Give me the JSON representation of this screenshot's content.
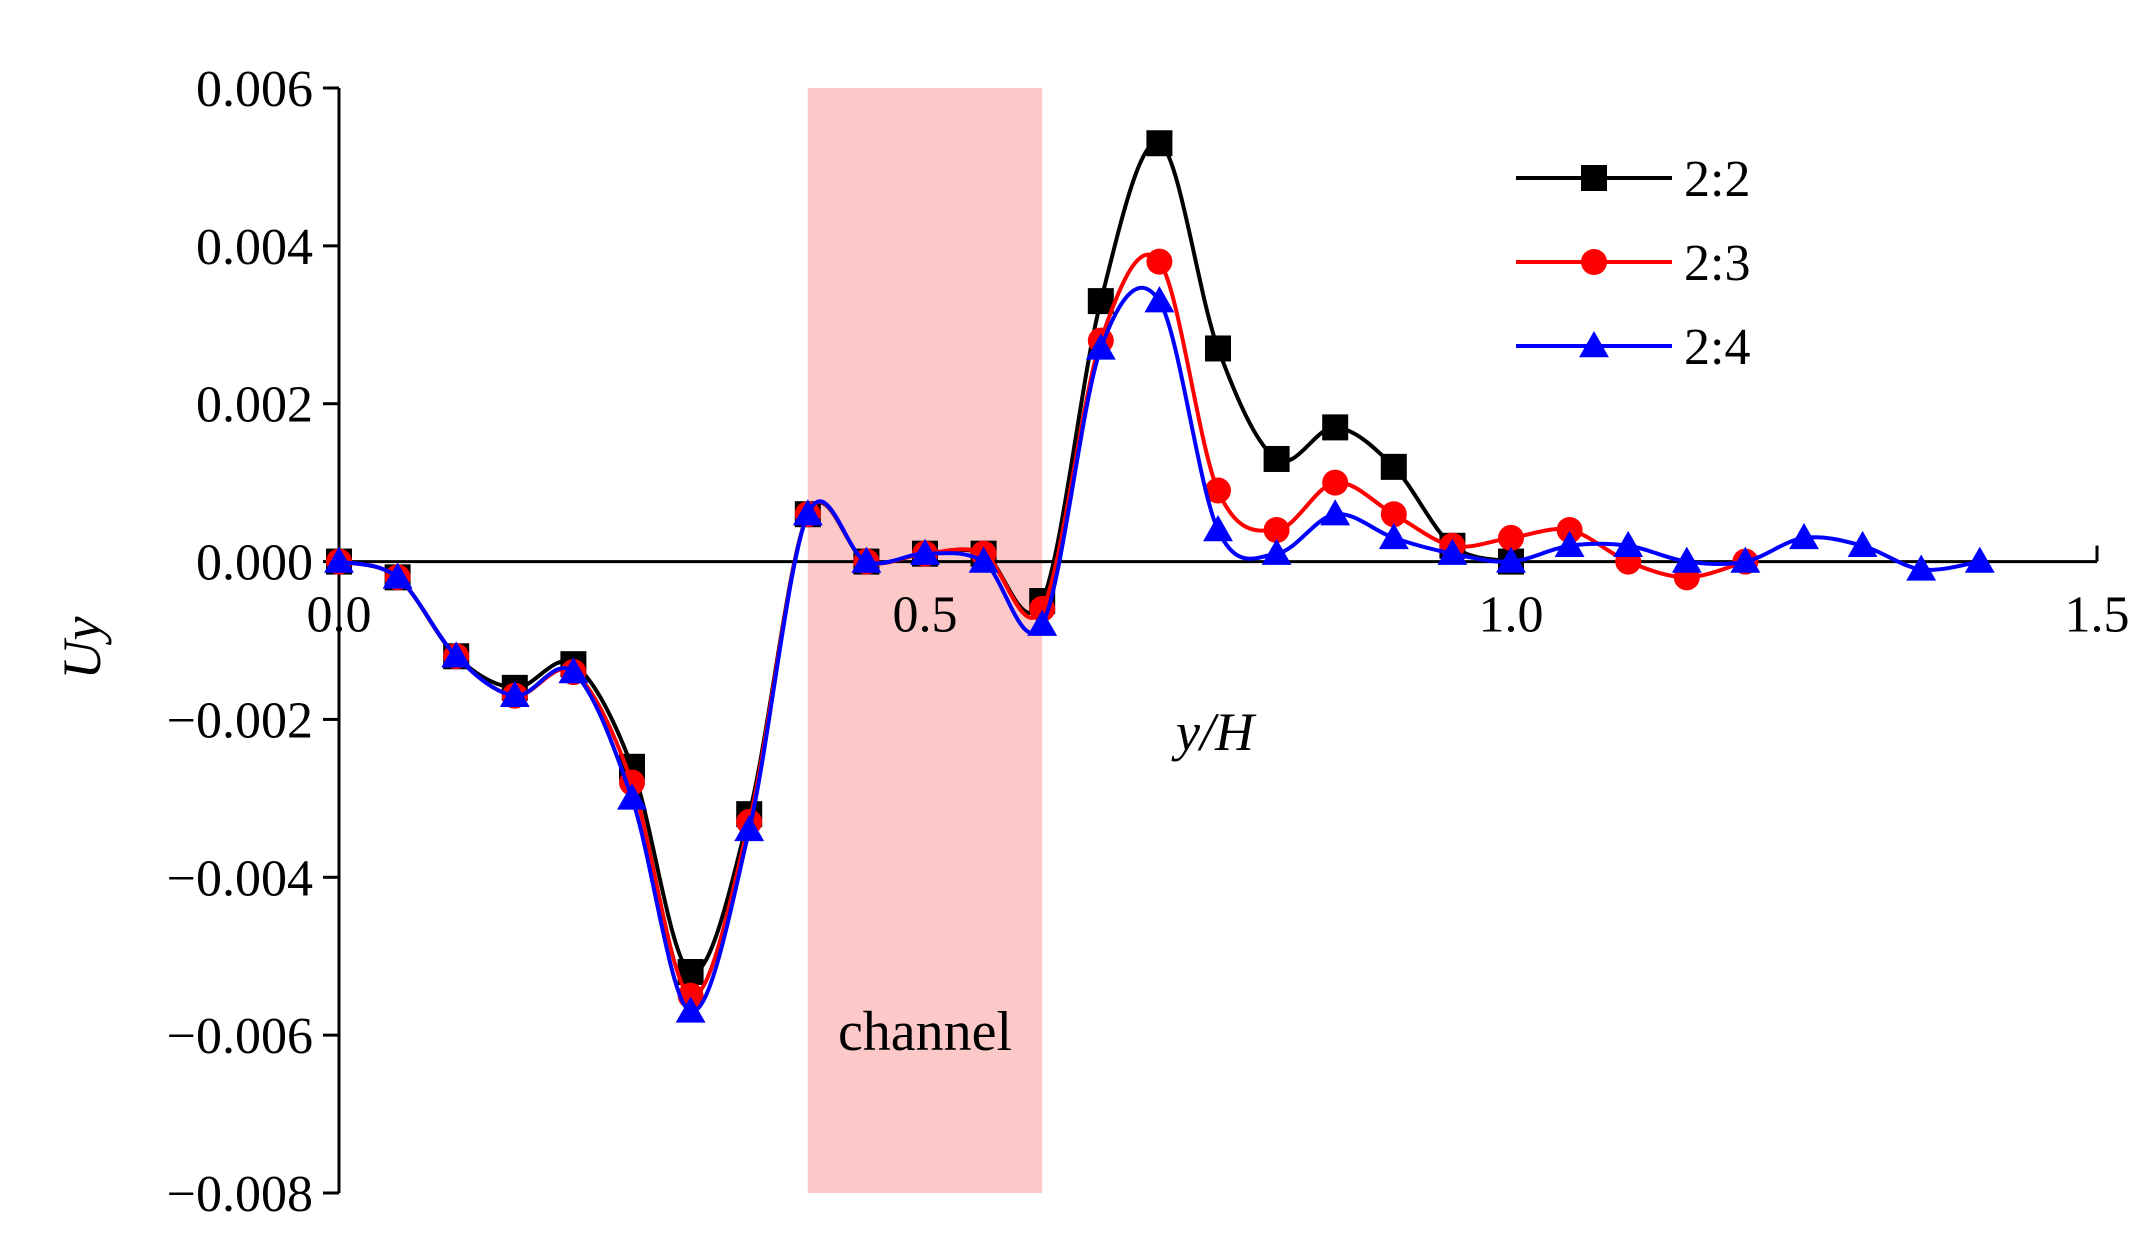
{
  "chart_data": {
    "type": "line",
    "xlabel": "y/H",
    "ylabel": "Uy",
    "xlim": [
      0,
      1.5
    ],
    "ylim": [
      -0.008,
      0.006
    ],
    "x_ticks": [
      "0.0",
      "0.5",
      "1.0",
      "1.5"
    ],
    "y_ticks": [
      "0.006",
      "0.004",
      "0.002",
      "0.000",
      "−0.002",
      "−0.004",
      "−0.006",
      "−0.008"
    ],
    "region": {
      "label": "channel",
      "x_start": 0.4,
      "x_end": 0.6,
      "color": "#fcc8c8"
    },
    "legend_position": "top-right",
    "series": [
      {
        "name": "2:2",
        "color": "#000000",
        "marker": "square",
        "x": [
          0.0,
          0.05,
          0.1,
          0.15,
          0.2,
          0.25,
          0.3,
          0.35,
          0.4,
          0.45,
          0.5,
          0.55,
          0.6,
          0.65,
          0.7,
          0.75,
          0.8,
          0.85,
          0.9,
          0.95,
          1.0
        ],
        "values": [
          0.0,
          -0.0002,
          -0.0012,
          -0.0016,
          -0.0013,
          -0.0026,
          -0.0052,
          -0.0032,
          0.0006,
          0.0,
          0.0001,
          0.0001,
          -0.0005,
          0.0033,
          0.0053,
          0.0027,
          0.0013,
          0.0017,
          0.0012,
          0.0002,
          0.0
        ]
      },
      {
        "name": "2:3",
        "color": "#ff0000",
        "marker": "circle",
        "x": [
          0.0,
          0.05,
          0.1,
          0.15,
          0.2,
          0.25,
          0.3,
          0.35,
          0.4,
          0.45,
          0.5,
          0.55,
          0.6,
          0.65,
          0.7,
          0.75,
          0.8,
          0.85,
          0.9,
          0.95,
          1.0,
          1.05,
          1.1,
          1.15,
          1.2
        ],
        "values": [
          0.0,
          -0.0002,
          -0.0012,
          -0.0017,
          -0.0014,
          -0.0028,
          -0.0055,
          -0.0033,
          0.0006,
          0.0,
          0.0001,
          0.0001,
          -0.0006,
          0.0028,
          0.0038,
          0.0009,
          0.0004,
          0.001,
          0.0006,
          0.0002,
          0.0003,
          0.0004,
          0.0,
          -0.0002,
          0.0
        ]
      },
      {
        "name": "2:4",
        "color": "#0000ff",
        "marker": "triangle",
        "x": [
          0.0,
          0.05,
          0.1,
          0.15,
          0.2,
          0.25,
          0.3,
          0.35,
          0.4,
          0.45,
          0.5,
          0.55,
          0.6,
          0.65,
          0.7,
          0.75,
          0.8,
          0.85,
          0.9,
          0.95,
          1.0,
          1.05,
          1.1,
          1.15,
          1.2,
          1.25,
          1.3,
          1.35,
          1.4
        ],
        "values": [
          0.0,
          -0.0002,
          -0.0012,
          -0.0017,
          -0.0014,
          -0.003,
          -0.0057,
          -0.0034,
          0.0006,
          0.0,
          0.0001,
          0.0,
          -0.0008,
          0.0027,
          0.0033,
          0.0004,
          0.0001,
          0.0006,
          0.0003,
          0.0001,
          0.0,
          0.0002,
          0.0002,
          0.0,
          0.0,
          0.0003,
          0.0002,
          -0.0001,
          0.0
        ]
      }
    ]
  }
}
